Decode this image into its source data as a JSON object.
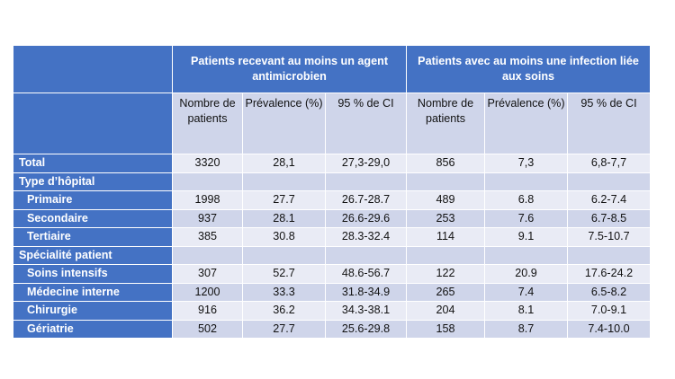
{
  "header": {
    "group1": "Patients recevant au moins un agent antimicrobien",
    "group2": "Patients avec au moins une infection liée aux  soins",
    "columns": [
      "Nombre de patients",
      "Prévalence (%)",
      "95 % de CI",
      "Nombre de patients",
      "Prévalence (%)",
      "95 % de CI"
    ]
  },
  "rows": [
    {
      "label": "Total",
      "indent": false,
      "values": [
        "3320",
        "28,1",
        "27,3-29,0",
        "856",
        "7,3",
        "6,8-7,7"
      ]
    },
    {
      "label": "Type d’hôpital",
      "indent": false,
      "values": [
        "",
        "",
        "",
        "",
        "",
        ""
      ]
    },
    {
      "label": "Primaire",
      "indent": true,
      "values": [
        "1998",
        "27.7",
        "26.7-28.7",
        "489",
        "6.8",
        "6.2-7.4"
      ]
    },
    {
      "label": "Secondaire",
      "indent": true,
      "values": [
        "937",
        "28.1",
        "26.6-29.6",
        "253",
        "7.6",
        "6.7-8.5"
      ]
    },
    {
      "label": "Tertiaire",
      "indent": true,
      "values": [
        "385",
        "30.8",
        "28.3-32.4",
        "114",
        "9.1",
        "7.5-10.7"
      ]
    },
    {
      "label": "Spécialité patient",
      "indent": false,
      "values": [
        "",
        "",
        "",
        "",
        "",
        ""
      ]
    },
    {
      "label": "Soins intensifs",
      "indent": true,
      "values": [
        "307",
        "52.7",
        "48.6-56.7",
        "122",
        "20.9",
        "17.6-24.2"
      ]
    },
    {
      "label": "Médecine interne",
      "indent": true,
      "values": [
        "1200",
        "33.3",
        "31.8-34.9",
        "265",
        "7.4",
        "6.5-8.2"
      ]
    },
    {
      "label": "Chirurgie",
      "indent": true,
      "values": [
        "916",
        "36.2",
        "34.3-38.1",
        "204",
        "8.1",
        "7.0-9.1"
      ]
    },
    {
      "label": "Gériatrie",
      "indent": true,
      "values": [
        "502",
        "27.7",
        "25.6-29.8",
        "158",
        "8.7",
        "7.4-10.0"
      ]
    }
  ],
  "colors": {
    "header_blue": "#4472c4",
    "band_dark": "#cfd5ea",
    "band_light": "#e9ebf5"
  }
}
